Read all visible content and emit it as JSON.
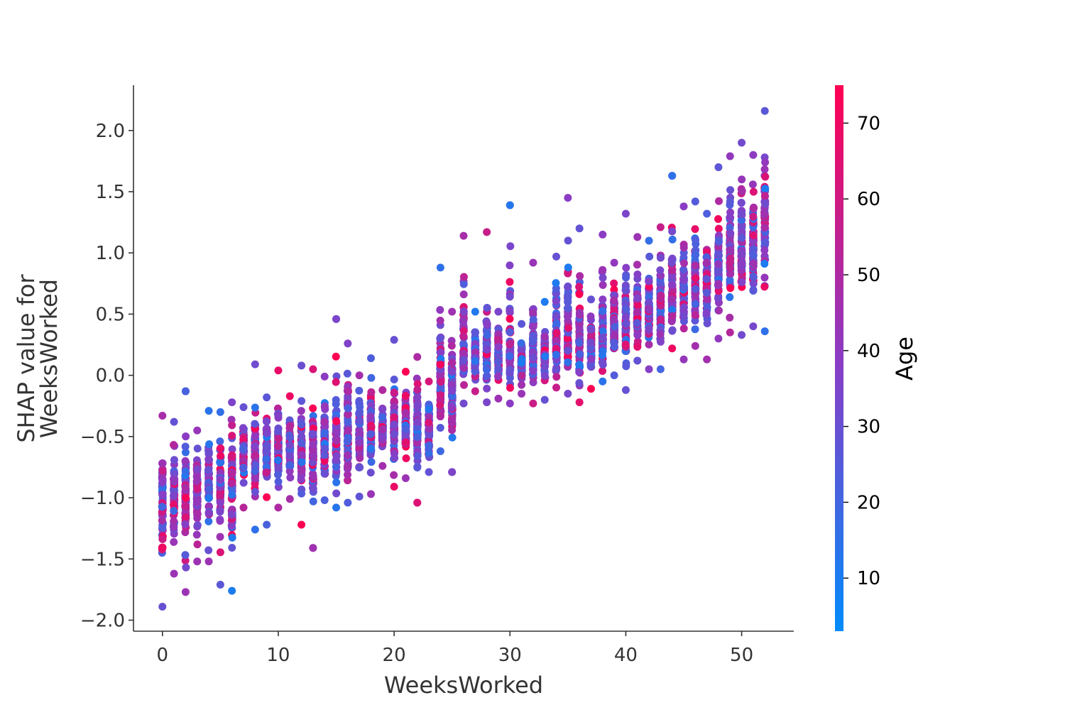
{
  "chart_data": {
    "type": "scatter",
    "title": "",
    "xlabel": "WeeksWorked",
    "ylabel_lines": [
      "SHAP value for",
      "WeeksWorked"
    ],
    "xlim": [
      -2.5,
      54.5
    ],
    "ylim": [
      -2.09,
      2.37
    ],
    "x_ticks": [
      0,
      10,
      20,
      30,
      40,
      50
    ],
    "x_tick_labels": [
      "0",
      "10",
      "20",
      "30",
      "40",
      "50"
    ],
    "y_ticks": [
      -2.0,
      -1.5,
      -1.0,
      -0.5,
      0.0,
      0.5,
      1.0,
      1.5,
      2.0
    ],
    "y_tick_labels": [
      "−2.0",
      "−1.5",
      "−1.0",
      "−0.5",
      "0.0",
      "0.5",
      "1.0",
      "1.5",
      "2.0"
    ],
    "grid": false,
    "color_by": "Age",
    "colorbar": {
      "label": "Age",
      "range": [
        3,
        75
      ],
      "ticks": [
        10,
        20,
        30,
        40,
        50,
        60,
        70
      ],
      "tick_labels": [
        "10",
        "20",
        "30",
        "40",
        "50",
        "60",
        "70"
      ],
      "color_low": "#008bfb",
      "color_mid": "#8b3cc4",
      "color_high": "#ff0052"
    },
    "point_color": "mapped from Age",
    "columns": [
      {
        "x": 0,
        "min": -1.89,
        "max": -0.33,
        "center": -1.05
      },
      {
        "x": 1,
        "min": -1.62,
        "max": -0.38,
        "center": -0.95
      },
      {
        "x": 2,
        "min": -1.77,
        "max": -0.13,
        "center": -0.95
      },
      {
        "x": 3,
        "min": -1.52,
        "max": -0.45,
        "center": -0.95
      },
      {
        "x": 4,
        "min": -1.52,
        "max": -0.29,
        "center": -0.9
      },
      {
        "x": 5,
        "min": -1.71,
        "max": -0.3,
        "center": -0.9
      },
      {
        "x": 6,
        "min": -1.76,
        "max": -0.22,
        "center": -0.9
      },
      {
        "x": 7,
        "min": -1.08,
        "max": -0.26,
        "center": -0.65
      },
      {
        "x": 8,
        "min": -1.26,
        "max": 0.09,
        "center": -0.6
      },
      {
        "x": 9,
        "min": -1.22,
        "max": -0.18,
        "center": -0.6
      },
      {
        "x": 10,
        "min": -1.08,
        "max": 0.04,
        "center": -0.6
      },
      {
        "x": 11,
        "min": -1.01,
        "max": -0.17,
        "center": -0.6
      },
      {
        "x": 12,
        "min": -1.22,
        "max": 0.08,
        "center": -0.6
      },
      {
        "x": 13,
        "min": -1.41,
        "max": 0.05,
        "center": -0.6
      },
      {
        "x": 14,
        "min": -1.02,
        "max": -0.01,
        "center": -0.55
      },
      {
        "x": 15,
        "min": -1.08,
        "max": 0.46,
        "center": -0.5
      },
      {
        "x": 16,
        "min": -1.04,
        "max": 0.26,
        "center": -0.5
      },
      {
        "x": 17,
        "min": -0.99,
        "max": 0.0,
        "center": -0.5
      },
      {
        "x": 18,
        "min": -0.97,
        "max": 0.14,
        "center": -0.45
      },
      {
        "x": 19,
        "min": -0.74,
        "max": -0.12,
        "center": -0.45
      },
      {
        "x": 20,
        "min": -0.91,
        "max": 0.29,
        "center": -0.4
      },
      {
        "x": 21,
        "min": -0.84,
        "max": 0.03,
        "center": -0.4
      },
      {
        "x": 22,
        "min": -1.04,
        "max": 0.15,
        "center": -0.4
      },
      {
        "x": 23,
        "min": -0.79,
        "max": -0.05,
        "center": -0.45
      },
      {
        "x": 24,
        "min": -0.62,
        "max": 0.88,
        "center": 0.0
      },
      {
        "x": 25,
        "min": -0.79,
        "max": 0.52,
        "center": -0.15
      },
      {
        "x": 26,
        "min": -0.23,
        "max": 1.14,
        "center": 0.2
      },
      {
        "x": 27,
        "min": -0.13,
        "max": 0.52,
        "center": 0.15
      },
      {
        "x": 28,
        "min": -0.22,
        "max": 1.17,
        "center": 0.2
      },
      {
        "x": 29,
        "min": -0.19,
        "max": 0.52,
        "center": 0.15
      },
      {
        "x": 30,
        "min": -0.23,
        "max": 1.39,
        "center": 0.2
      },
      {
        "x": 31,
        "min": -0.15,
        "max": 0.42,
        "center": 0.1
      },
      {
        "x": 32,
        "min": -0.23,
        "max": 0.92,
        "center": 0.2
      },
      {
        "x": 33,
        "min": -0.2,
        "max": 0.6,
        "center": 0.15
      },
      {
        "x": 34,
        "min": -0.1,
        "max": 0.97,
        "center": 0.3
      },
      {
        "x": 35,
        "min": -0.15,
        "max": 1.45,
        "center": 0.3
      },
      {
        "x": 36,
        "min": -0.22,
        "max": 1.2,
        "center": 0.3
      },
      {
        "x": 37,
        "min": -0.11,
        "max": 0.62,
        "center": 0.25
      },
      {
        "x": 38,
        "min": -0.05,
        "max": 1.15,
        "center": 0.3
      },
      {
        "x": 39,
        "min": 0.0,
        "max": 0.92,
        "center": 0.35
      },
      {
        "x": 40,
        "min": -0.12,
        "max": 1.32,
        "center": 0.4
      },
      {
        "x": 41,
        "min": 0.12,
        "max": 1.13,
        "center": 0.5
      },
      {
        "x": 42,
        "min": 0.05,
        "max": 1.1,
        "center": 0.5
      },
      {
        "x": 43,
        "min": 0.05,
        "max": 1.21,
        "center": 0.55
      },
      {
        "x": 44,
        "min": 0.22,
        "max": 1.63,
        "center": 0.65
      },
      {
        "x": 45,
        "min": 0.13,
        "max": 1.38,
        "center": 0.7
      },
      {
        "x": 46,
        "min": 0.24,
        "max": 1.42,
        "center": 0.75
      },
      {
        "x": 47,
        "min": 0.13,
        "max": 1.32,
        "center": 0.75
      },
      {
        "x": 48,
        "min": 0.3,
        "max": 1.7,
        "center": 0.9
      },
      {
        "x": 49,
        "min": 0.35,
        "max": 1.79,
        "center": 1.0
      },
      {
        "x": 50,
        "min": 0.33,
        "max": 1.9,
        "center": 1.0
      },
      {
        "x": 51,
        "min": 0.4,
        "max": 1.8,
        "center": 1.05
      },
      {
        "x": 52,
        "min": 0.36,
        "max": 2.16,
        "center": 1.2
      }
    ],
    "notable_points": [
      {
        "x": 44,
        "y": 1.63,
        "age": 15
      },
      {
        "x": 2,
        "y": -0.13,
        "age": 22
      },
      {
        "x": 13,
        "y": -1.41,
        "age": 45
      },
      {
        "x": 25,
        "y": -0.79,
        "age": 35
      },
      {
        "x": 22,
        "y": -1.04,
        "age": 65
      },
      {
        "x": 15,
        "y": 0.46,
        "age": 35
      },
      {
        "x": 30,
        "y": 1.39,
        "age": 12
      }
    ]
  }
}
